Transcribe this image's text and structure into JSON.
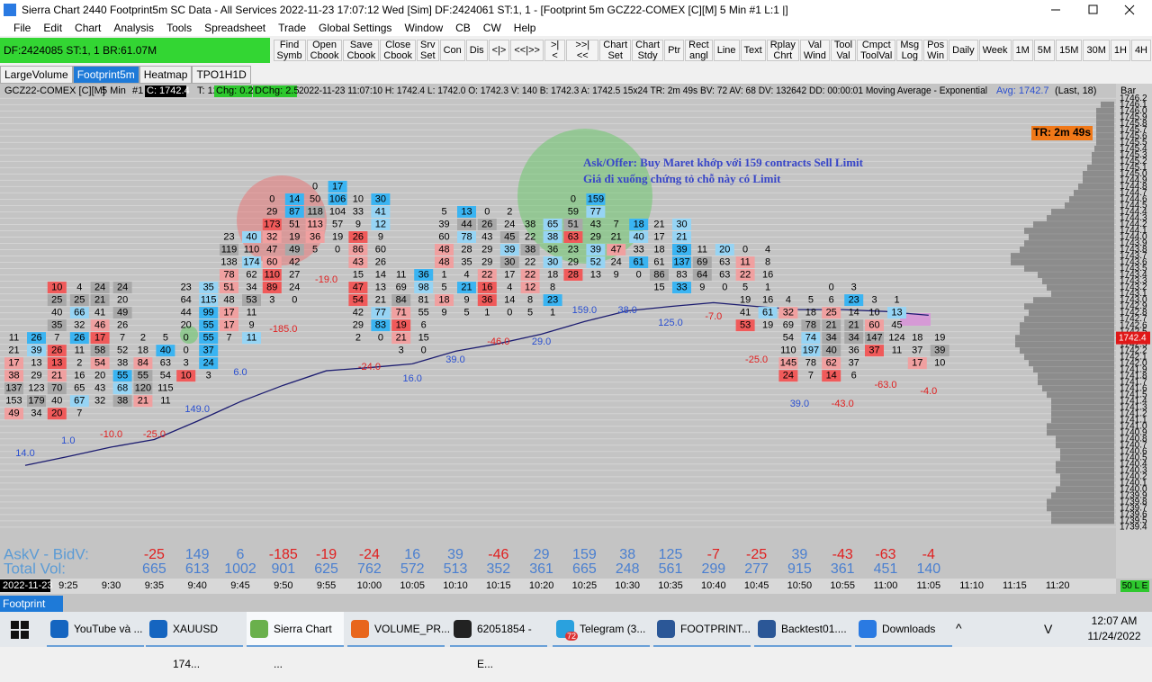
{
  "window": {
    "title": "Sierra Chart 2440 Footprint5m  SC Data - All Services 2022-11-23  17:07:12 Wed [Sim]  DF:2424061  ST:1, 1 - [Footprint 5m GCZ22-COMEX [C][M]  5 Min  #1 L:1 |]"
  },
  "menu": [
    "File",
    "Edit",
    "Chart",
    "Analysis",
    "Tools",
    "Spreadsheet",
    "Trade",
    "Global Settings",
    "Window",
    "CB",
    "CW",
    "Help"
  ],
  "status_box": "DF:2424085  ST:1, 1  BR:61.07M",
  "toolbar": [
    [
      "Find",
      "Symb"
    ],
    [
      "Open",
      "Cbook"
    ],
    [
      "Save",
      "Cbook"
    ],
    [
      "Close",
      "Cbook"
    ],
    [
      "Srv",
      "Set"
    ],
    [
      "Con"
    ],
    [
      "Dis"
    ],
    [
      "<|>"
    ],
    [
      "<<|>>"
    ],
    [
      ">|<"
    ],
    [
      ">>|<<"
    ],
    [
      "Chart",
      "Set"
    ],
    [
      "Chart",
      "Stdy"
    ],
    [
      "Ptr"
    ],
    [
      "Rect",
      "angl"
    ],
    [
      "Line"
    ],
    [
      "Text"
    ],
    [
      "Rplay",
      "Chrt"
    ],
    [
      "Val",
      "Wind"
    ],
    [
      "Tool",
      "Val"
    ],
    [
      "Cmpct",
      "ToolVal"
    ],
    [
      "Msg",
      "Log"
    ],
    [
      "Pos",
      "Win"
    ],
    [
      "Daily"
    ],
    [
      "Week"
    ],
    [
      "1M"
    ],
    [
      "5M"
    ],
    [
      "15M"
    ],
    [
      "30M"
    ],
    [
      "1H"
    ],
    [
      "4H"
    ]
  ],
  "tabs": [
    "LargeVolume",
    "Footprint5m",
    "Heatmap",
    "TPO1H1D"
  ],
  "active_tab": "Footprint5m",
  "chart_data": {
    "type": "footprint",
    "header": {
      "symbol": "GCZ22-COMEX [C][M]",
      "interval": "5 Min",
      "chart_no": "#1",
      "close": "C: 1742.4",
      "trades": "T: 120",
      "chg": "Chg: 0.2",
      "dchg": "DChg: 2.5",
      "details": "2022-11-23 11:07:10 H: 1742.4 L: 1742.0 O: 1742.3 V: 140 B: 1742.3 A: 1742.5 15x24 TR: 2m 49s BV: 72 AV: 68 DV: 132642 DD: 00:00:01 Moving Average - Exponential",
      "avg": "Avg: 1742.7",
      "avg_params": "(Last, 18)",
      "bar_label": "Bar"
    },
    "annotation": [
      "Ask/Offer: Buy Maret khớp với 159 contracts Sell Limit",
      "Giá đi xuống chứng tỏ chỗ này có Limit"
    ],
    "timer": "TR: 2m 49s",
    "last_price": 1742.4,
    "date_label": "2022-11-23",
    "time_labels": [
      "9:25",
      "9:30",
      "9:35",
      "9:40",
      "9:45",
      "9:50",
      "9:55",
      "10:00",
      "10:05",
      "10:10",
      "10:15",
      "10:20",
      "10:25",
      "10:30",
      "10:35",
      "10:40",
      "10:45",
      "10:50",
      "10:55",
      "11:00",
      "11:05",
      "11:10",
      "11:15",
      "11:20"
    ],
    "ylim": [
      1739.27,
      1746.29
    ],
    "yticks": [
      1746.2,
      1746.1,
      {
        "value": 1746,
        "label": "1746.0"
      },
      1745.9,
      1745.8,
      1745.7,
      1745.6,
      1745.5,
      1745.4,
      1745.3,
      1745.2,
      1745.1,
      {
        "value": 1745,
        "label": "1745.0"
      },
      1744.9,
      1744.8,
      1744.7,
      1744.6,
      1744.5,
      1744.4,
      1744.3,
      1744.2,
      1744.1,
      {
        "value": 1744,
        "label": "1744.0"
      },
      1743.9,
      1743.8,
      1743.7,
      1743.6,
      1743.5,
      1743.4,
      1743.3,
      1743.2,
      1743.1,
      {
        "value": 1743,
        "label": "1743.0"
      },
      1742.9,
      1742.8,
      1742.7,
      1742.6,
      1742.5,
      1742.4,
      1742.3,
      1742.2,
      1742.1,
      {
        "value": 1742,
        "label": "1742.0"
      },
      1741.9,
      1741.8,
      1741.7,
      1741.6,
      1741.5,
      1741.4,
      1741.3,
      1741.2,
      1741.1,
      {
        "value": 1741,
        "label": "1741.0"
      },
      1740.9,
      1740.8,
      1740.7,
      1740.6,
      1740.5,
      1740.4,
      1740.3,
      1740.2,
      1740.1,
      {
        "value": 1740,
        "label": "1740.0"
      },
      1739.9,
      1739.8,
      1739.7,
      1739.6,
      1739.5,
      1739.4
    ],
    "grid": true,
    "bars": [
      {
        "top": 1742.4,
        "rows": [
          [
            11,
            26
          ],
          [
            21,
            39
          ],
          [
            17,
            13
          ],
          [
            38,
            29
          ],
          [
            137,
            123
          ],
          [
            153,
            179
          ],
          [
            49,
            34
          ]
        ]
      },
      {
        "top": 1743.2,
        "rows": [
          [
            10,
            4
          ],
          [
            25,
            25
          ],
          [
            40,
            66
          ],
          [
            35,
            32
          ],
          [
            7,
            26
          ],
          [
            26,
            11
          ],
          [
            13,
            2
          ],
          [
            21,
            16
          ],
          [
            70,
            65
          ],
          [
            40,
            67
          ],
          [
            20,
            7
          ]
        ]
      },
      {
        "top": 1743.2,
        "rows": [
          [
            24,
            24
          ],
          [
            21,
            20
          ],
          [
            41,
            49
          ],
          [
            46,
            26
          ],
          [
            17,
            7
          ],
          [
            58,
            52
          ],
          [
            54,
            38
          ],
          [
            20,
            55
          ],
          [
            43,
            68
          ],
          [
            32,
            38
          ]
        ]
      },
      {
        "top": 1742.4,
        "rows": [
          [
            2,
            5
          ],
          [
            18,
            40
          ],
          [
            84,
            63
          ],
          [
            55,
            54
          ],
          [
            120,
            115
          ],
          [
            21,
            11
          ]
        ]
      },
      {
        "top": 1743.2,
        "rows": [
          [
            23,
            35
          ],
          [
            64,
            115
          ],
          [
            44,
            99
          ],
          [
            20,
            55
          ],
          [
            0,
            55
          ],
          [
            0,
            37
          ],
          [
            3,
            24
          ],
          [
            10,
            3
          ]
        ]
      },
      {
        "top": 1744.0,
        "rows": [
          [
            23,
            40
          ],
          [
            119,
            110
          ],
          [
            138,
            174
          ],
          [
            78,
            62
          ],
          [
            51,
            34
          ],
          [
            48,
            53
          ],
          [
            17,
            11
          ],
          [
            17,
            9
          ],
          [
            7,
            11
          ]
        ]
      },
      {
        "top": 1744.6,
        "rows": [
          [
            0,
            14
          ],
          [
            29,
            87
          ],
          [
            173,
            51
          ],
          [
            32,
            19
          ],
          [
            47,
            49
          ],
          [
            60,
            42
          ],
          [
            110,
            27
          ],
          [
            89,
            24
          ],
          [
            3,
            0
          ]
        ]
      },
      {
        "top": 1744.8,
        "rows": [
          [
            0,
            17
          ],
          [
            50,
            106
          ],
          [
            118,
            104
          ],
          [
            113,
            57
          ],
          [
            36,
            19
          ],
          [
            5,
            0
          ]
        ]
      },
      {
        "top": 1744.6,
        "rows": [
          [
            10,
            30
          ],
          [
            33,
            41
          ],
          [
            9,
            12
          ],
          [
            26,
            9
          ],
          [
            86,
            60
          ],
          [
            43,
            26
          ],
          [
            15,
            14
          ],
          [
            47,
            13
          ],
          [
            54,
            21
          ],
          [
            42,
            77
          ],
          [
            29,
            83
          ],
          [
            2,
            0
          ]
        ]
      },
      {
        "top": 1743.4,
        "rows": [
          [
            11,
            36
          ],
          [
            69,
            98
          ],
          [
            84,
            81
          ],
          [
            71,
            55
          ],
          [
            19,
            6
          ],
          [
            21,
            15
          ],
          [
            3,
            0
          ]
        ]
      },
      {
        "top": 1744.4,
        "rows": [
          [
            5,
            13
          ],
          [
            39,
            44
          ],
          [
            60,
            78
          ],
          [
            48,
            28
          ],
          [
            48,
            35
          ],
          [
            1,
            4
          ],
          [
            5,
            21
          ],
          [
            18,
            9
          ],
          [
            9,
            5
          ]
        ]
      },
      {
        "top": 1744.4,
        "rows": [
          [
            0,
            2
          ],
          [
            26,
            24
          ],
          [
            43,
            45
          ],
          [
            29,
            39
          ],
          [
            29,
            30
          ],
          [
            22,
            17
          ],
          [
            16,
            4
          ],
          [
            36,
            14
          ],
          [
            1,
            0
          ]
        ]
      },
      {
        "top": 1744.2,
        "rows": [
          [
            38,
            65
          ],
          [
            22,
            38
          ],
          [
            38,
            36
          ],
          [
            22,
            30
          ],
          [
            22,
            18
          ],
          [
            12,
            8
          ],
          [
            8,
            23
          ],
          [
            5,
            1
          ]
        ]
      },
      {
        "top": 1744.6,
        "rows": [
          [
            0,
            159
          ],
          [
            59,
            77
          ],
          [
            51,
            43
          ],
          [
            63,
            29
          ],
          [
            23,
            39
          ],
          [
            29,
            52
          ],
          [
            28,
            13
          ]
        ]
      },
      {
        "top": 1744.2,
        "rows": [
          [
            7,
            18
          ],
          [
            21,
            40
          ],
          [
            47,
            33
          ],
          [
            24,
            61
          ],
          [
            9,
            0
          ]
        ]
      },
      {
        "top": 1744.2,
        "rows": [
          [
            21,
            30
          ],
          [
            17,
            21
          ],
          [
            18,
            39
          ],
          [
            61,
            137
          ],
          [
            86,
            83
          ],
          [
            15,
            33
          ]
        ]
      },
      {
        "top": 1743.8,
        "rows": [
          [
            11,
            20
          ],
          [
            69,
            63
          ],
          [
            64,
            63
          ],
          [
            9,
            0
          ]
        ]
      },
      {
        "top": 1743.8,
        "rows": [
          [
            0,
            4
          ],
          [
            11,
            8
          ],
          [
            22,
            16
          ],
          [
            5,
            1
          ],
          [
            19,
            16
          ],
          [
            41,
            61
          ],
          [
            53,
            19
          ]
        ]
      },
      {
        "top": 1743.0,
        "rows": [
          [
            4,
            5
          ],
          [
            32,
            18
          ],
          [
            69,
            78
          ],
          [
            54,
            74
          ],
          [
            110,
            197
          ],
          [
            145,
            78
          ],
          [
            24,
            7
          ]
        ]
      },
      {
        "top": 1743.2,
        "rows": [
          [
            0,
            3
          ],
          [
            6,
            23
          ],
          [
            25,
            14
          ],
          [
            21,
            21
          ],
          [
            34,
            34
          ],
          [
            40,
            36
          ],
          [
            62,
            37
          ],
          [
            14,
            6
          ]
        ]
      },
      {
        "top": 1743.0,
        "rows": [
          [
            3,
            1
          ],
          [
            10,
            13
          ],
          [
            60,
            45
          ],
          [
            147,
            124
          ],
          [
            37,
            11
          ]
        ]
      },
      {
        "top": 1742.4,
        "rows": [
          [
            18,
            19
          ],
          [
            37,
            39
          ],
          [
            17,
            10
          ]
        ]
      }
    ],
    "bar_deltas": [
      14,
      1,
      -10,
      -25,
      149,
      6,
      -185,
      -19,
      -24,
      16,
      39,
      -46,
      29,
      159,
      38,
      125,
      -7,
      -25,
      39,
      -43,
      -63,
      -4
    ],
    "bar_delta_labels": [
      "14.0",
      "1.0",
      "-10.0",
      "-25.0",
      "149.0",
      "6.0",
      "-185.0",
      "-19.0",
      "-24.0",
      "16.0",
      "39.0",
      "-46.0",
      "29.0",
      "159.0",
      "38.0",
      "125.0",
      "-7.0",
      "-25.0",
      "39.0",
      "-43.0",
      "-63.0",
      "-4.0"
    ],
    "moving_average": [
      1740.38,
      1740.52,
      1740.67,
      1740.79,
      1741.08,
      1741.39,
      1741.65,
      1741.88,
      1741.93,
      1741.99,
      1742.19,
      1742.31,
      1742.46,
      1742.66,
      1742.83,
      1742.9,
      1742.96,
      1742.9,
      1742.85,
      1742.85,
      1742.82,
      1742.76
    ],
    "volume_profile": {
      "prices": [
        1746.1,
        1746.0,
        1745.9,
        1745.8,
        1745.7,
        1745.6,
        1745.5,
        1745.4,
        1745.3,
        1745.2,
        1745.1,
        1745.0,
        1744.9,
        1744.8,
        1744.7,
        1744.6,
        1744.5,
        1744.4,
        1744.3,
        1744.2,
        1744.1,
        1744.0,
        1743.9,
        1743.8,
        1743.7,
        1743.6,
        1743.5,
        1743.4,
        1743.3,
        1743.2,
        1743.1,
        1743.0,
        1742.9,
        1742.8,
        1742.7,
        1742.6,
        1742.5,
        1742.4,
        1742.3,
        1742.2,
        1742.1,
        1742.0,
        1741.9,
        1741.8,
        1741.7,
        1741.6,
        1741.5,
        1741.4,
        1741.3,
        1741.2,
        1741.1,
        1741.0,
        1740.9,
        1740.8,
        1740.7,
        1740.6,
        1740.5,
        1740.4,
        1740.3,
        1740.2,
        1740.1,
        1740.0,
        1739.9,
        1739.8,
        1739.7,
        1739.6,
        1739.5
      ],
      "volumes": [
        15,
        20,
        20,
        20,
        20,
        20,
        20,
        22,
        25,
        25,
        30,
        35,
        35,
        40,
        45,
        50,
        55,
        70,
        75,
        90,
        100,
        95,
        100,
        105,
        115,
        115,
        100,
        85,
        80,
        75,
        70,
        90,
        100,
        95,
        100,
        105,
        105,
        110,
        110,
        105,
        100,
        95,
        90,
        85,
        85,
        80,
        75,
        70,
        70,
        70,
        70,
        75,
        75,
        65,
        65,
        60,
        60,
        65,
        65,
        60,
        60,
        65,
        70,
        75,
        75,
        70,
        70
      ]
    },
    "summary": {
      "delta_label": "AskV - BidV:",
      "total_label": "Total Vol:",
      "deltas": [
        null,
        null,
        null,
        -25,
        149,
        6,
        -185,
        -19,
        -24,
        16,
        39,
        -46,
        29,
        159,
        38,
        125,
        -7,
        -25,
        39,
        -43,
        -63,
        -4
      ],
      "totals": [
        null,
        null,
        null,
        665,
        613,
        1002,
        901,
        625,
        762,
        572,
        513,
        352,
        361,
        665,
        248,
        561,
        299,
        277,
        915,
        361,
        451,
        140
      ]
    },
    "colors": {
      "bid_strong": "#f05a5a",
      "bid": "#f0a0a0",
      "ask_strong": "#3ab4f2",
      "ask": "#96d4f4",
      "neutral": "#a8a8a8",
      "positive": "#2a4fd0",
      "negative": "#e02020",
      "ma": "#1c1c70",
      "profile": "#8c8c8c"
    }
  },
  "bottom_tab": "Footprint 5m",
  "status_right": "50 L E",
  "taskbar": {
    "items": [
      "YouTube và ...",
      "XAUUSD 174...",
      "Sierra Chart ...",
      "VOLUME_PR...",
      "62051854 - E...",
      "Telegram (3...",
      "FOOTPRINT...",
      "Backtest01....",
      "Downloads"
    ],
    "badge": "72",
    "keyboard": "V",
    "time": "12:07 AM",
    "date": "11/24/2022"
  }
}
